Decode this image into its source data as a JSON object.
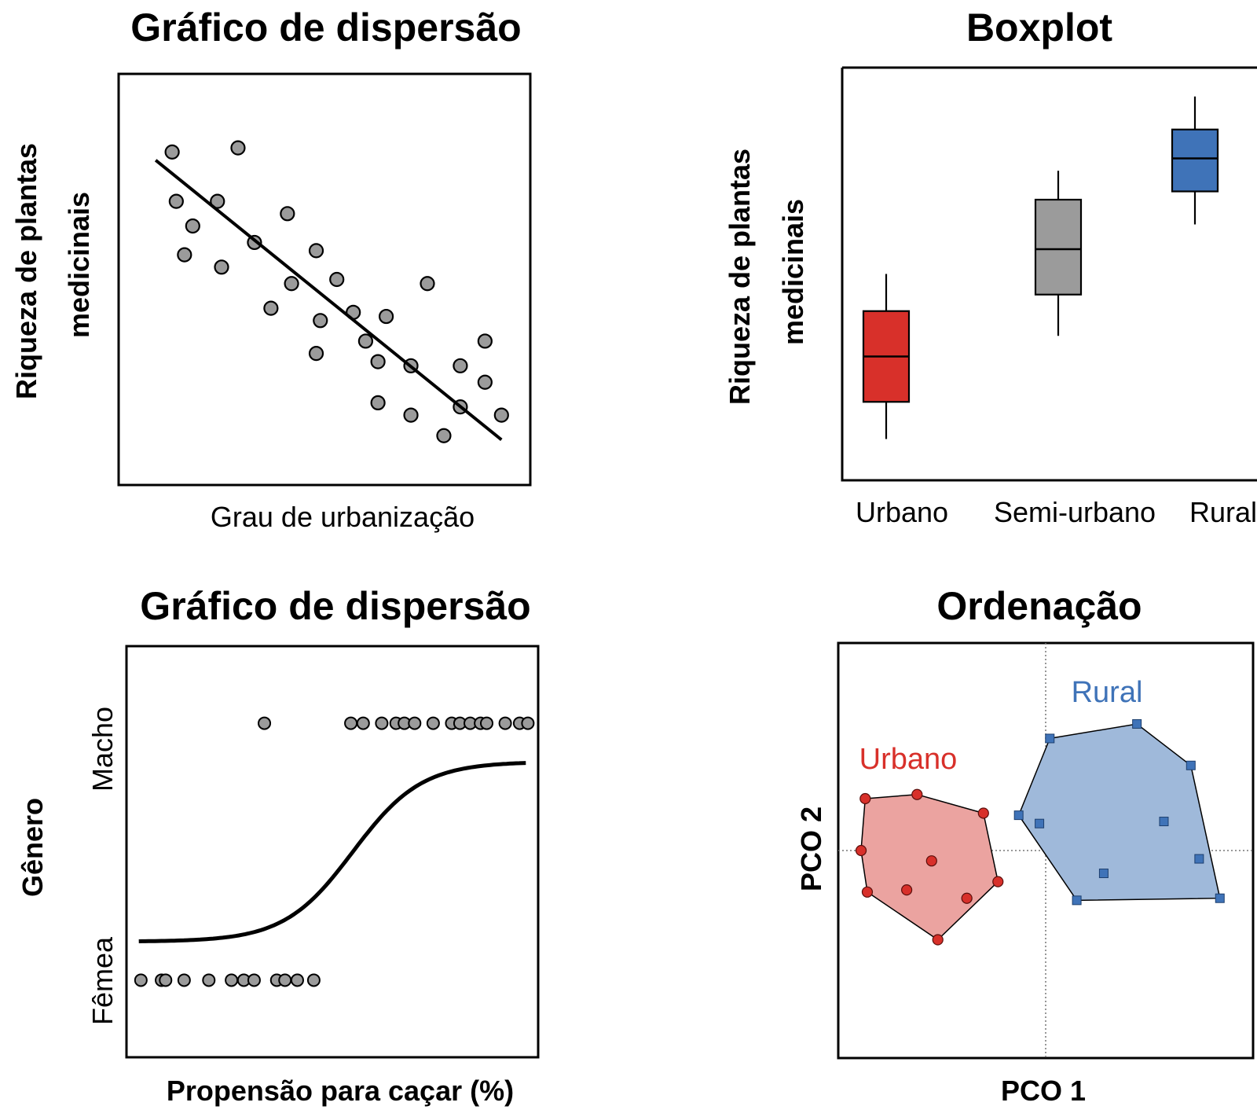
{
  "colors": {
    "point_gray": "#9b9b9b",
    "urban_red": "#d8302a",
    "semi_gray": "#9b9b9b",
    "rural_blue": "#3f73b8",
    "urban_fill": "#eba3a0",
    "rural_fill": "#9fb9da"
  },
  "chart_data": [
    {
      "type": "scatter",
      "title": "Gráfico de dispersão",
      "xlabel": "Grau de urbanização",
      "ylabel": "Riqueza de plantas medicinais",
      "ylabel_lines": [
        "Riqueza de plantas",
        "medicinais"
      ],
      "xlim": [
        0,
        10
      ],
      "ylim": [
        0,
        10
      ],
      "points": [
        {
          "x": 1.3,
          "y": 8.1
        },
        {
          "x": 2.9,
          "y": 8.2
        },
        {
          "x": 1.4,
          "y": 6.9
        },
        {
          "x": 2.4,
          "y": 6.9
        },
        {
          "x": 1.8,
          "y": 6.3
        },
        {
          "x": 1.6,
          "y": 5.6
        },
        {
          "x": 2.5,
          "y": 5.3
        },
        {
          "x": 4.1,
          "y": 6.6
        },
        {
          "x": 3.3,
          "y": 5.9
        },
        {
          "x": 4.8,
          "y": 5.7
        },
        {
          "x": 5.3,
          "y": 5.0
        },
        {
          "x": 4.2,
          "y": 4.9
        },
        {
          "x": 3.7,
          "y": 4.3
        },
        {
          "x": 4.9,
          "y": 4.0
        },
        {
          "x": 5.7,
          "y": 4.2
        },
        {
          "x": 7.5,
          "y": 4.9
        },
        {
          "x": 6.5,
          "y": 4.1
        },
        {
          "x": 4.8,
          "y": 3.2
        },
        {
          "x": 6.0,
          "y": 3.5
        },
        {
          "x": 6.3,
          "y": 3.0
        },
        {
          "x": 7.1,
          "y": 2.9
        },
        {
          "x": 8.3,
          "y": 2.9
        },
        {
          "x": 8.9,
          "y": 3.5
        },
        {
          "x": 8.9,
          "y": 2.5
        },
        {
          "x": 6.3,
          "y": 2.0
        },
        {
          "x": 7.1,
          "y": 1.7
        },
        {
          "x": 9.3,
          "y": 1.7
        },
        {
          "x": 8.3,
          "y": 1.9
        },
        {
          "x": 7.9,
          "y": 1.2
        }
      ],
      "trend_line": {
        "x": [
          0.9,
          9.3
        ],
        "y": [
          7.9,
          1.1
        ]
      }
    },
    {
      "type": "box",
      "title": "Boxplot",
      "ylabel": "Riqueza de plantas medicinais",
      "ylabel_lines": [
        "Riqueza de plantas",
        "medicinais"
      ],
      "categories": [
        "Urbano",
        "Semi-urbano",
        "Rural"
      ],
      "ylim": [
        0,
        10
      ],
      "boxes": [
        {
          "name": "Urbano",
          "min": 1.0,
          "q1": 1.9,
          "median": 3.0,
          "q3": 4.1,
          "max": 5.0,
          "color": "#d8302a"
        },
        {
          "name": "Semi-urbano",
          "min": 3.5,
          "q1": 4.5,
          "median": 5.6,
          "q3": 6.8,
          "max": 7.5,
          "color": "#9b9b9b"
        },
        {
          "name": "Rural",
          "min": 6.2,
          "q1": 7.0,
          "median": 7.8,
          "q3": 8.5,
          "max": 9.3,
          "color": "#3f73b8"
        }
      ]
    },
    {
      "type": "scatter",
      "title": "Gráfico de dispersão",
      "xlabel": "Propensão para caçar (%)",
      "ylabel": "Gênero",
      "ytick_labels": [
        "Fêmea",
        "Macho"
      ],
      "xlim": [
        0,
        100
      ],
      "ylim": [
        -0.3,
        1.3
      ],
      "points_female": [
        3.5,
        8.5,
        9.5,
        14,
        20,
        25.5,
        28.5,
        31,
        36.5,
        38.5,
        41.5,
        45.5
      ],
      "points_male": [
        33.5,
        54.5,
        57.5,
        62,
        65.5,
        67.5,
        70,
        74.5,
        79,
        81,
        83.5,
        86,
        87.5,
        92,
        95.5,
        97.5
      ],
      "logistic_curve": {
        "midpoint": 55,
        "steepness": 0.12,
        "x_range": [
          3,
          97
        ],
        "y_min": 0.15,
        "y_max": 0.85
      }
    },
    {
      "type": "scatter",
      "title": "Ordenação",
      "xlabel": "PCO 1",
      "ylabel": "PCO 2",
      "xlim": [
        -10,
        10
      ],
      "ylim": [
        -10,
        10
      ],
      "groups": [
        {
          "name": "Urbano",
          "color": "#d8302a",
          "marker": "circle",
          "points": [
            [
              -8.7,
              2.5
            ],
            [
              -6.2,
              2.7
            ],
            [
              -3.0,
              1.8
            ],
            [
              -8.9,
              0.0
            ],
            [
              -5.5,
              -0.5
            ],
            [
              -2.3,
              -1.5
            ],
            [
              -8.6,
              -2.0
            ],
            [
              -6.7,
              -1.9
            ],
            [
              -3.8,
              -2.3
            ],
            [
              -5.2,
              -4.3
            ]
          ],
          "hull": [
            [
              -8.7,
              2.5
            ],
            [
              -6.2,
              2.7
            ],
            [
              -3.0,
              1.8
            ],
            [
              -2.3,
              -1.5
            ],
            [
              -5.2,
              -4.3
            ],
            [
              -8.6,
              -2.0
            ],
            [
              -8.9,
              0.0
            ]
          ]
        },
        {
          "name": "Rural",
          "color": "#3f73b8",
          "marker": "square",
          "points": [
            [
              0.2,
              5.4
            ],
            [
              4.4,
              6.1
            ],
            [
              7.0,
              4.1
            ],
            [
              -1.3,
              1.7
            ],
            [
              -0.3,
              1.3
            ],
            [
              5.7,
              1.4
            ],
            [
              2.8,
              -1.1
            ],
            [
              7.4,
              -0.4
            ],
            [
              1.5,
              -2.4
            ],
            [
              8.4,
              -2.3
            ]
          ],
          "hull": [
            [
              0.2,
              5.4
            ],
            [
              4.4,
              6.1
            ],
            [
              7.0,
              4.1
            ],
            [
              8.4,
              -2.3
            ],
            [
              1.5,
              -2.4
            ],
            [
              -1.3,
              1.7
            ]
          ]
        }
      ],
      "reference_lines": {
        "x": 0,
        "y": 0
      }
    }
  ]
}
